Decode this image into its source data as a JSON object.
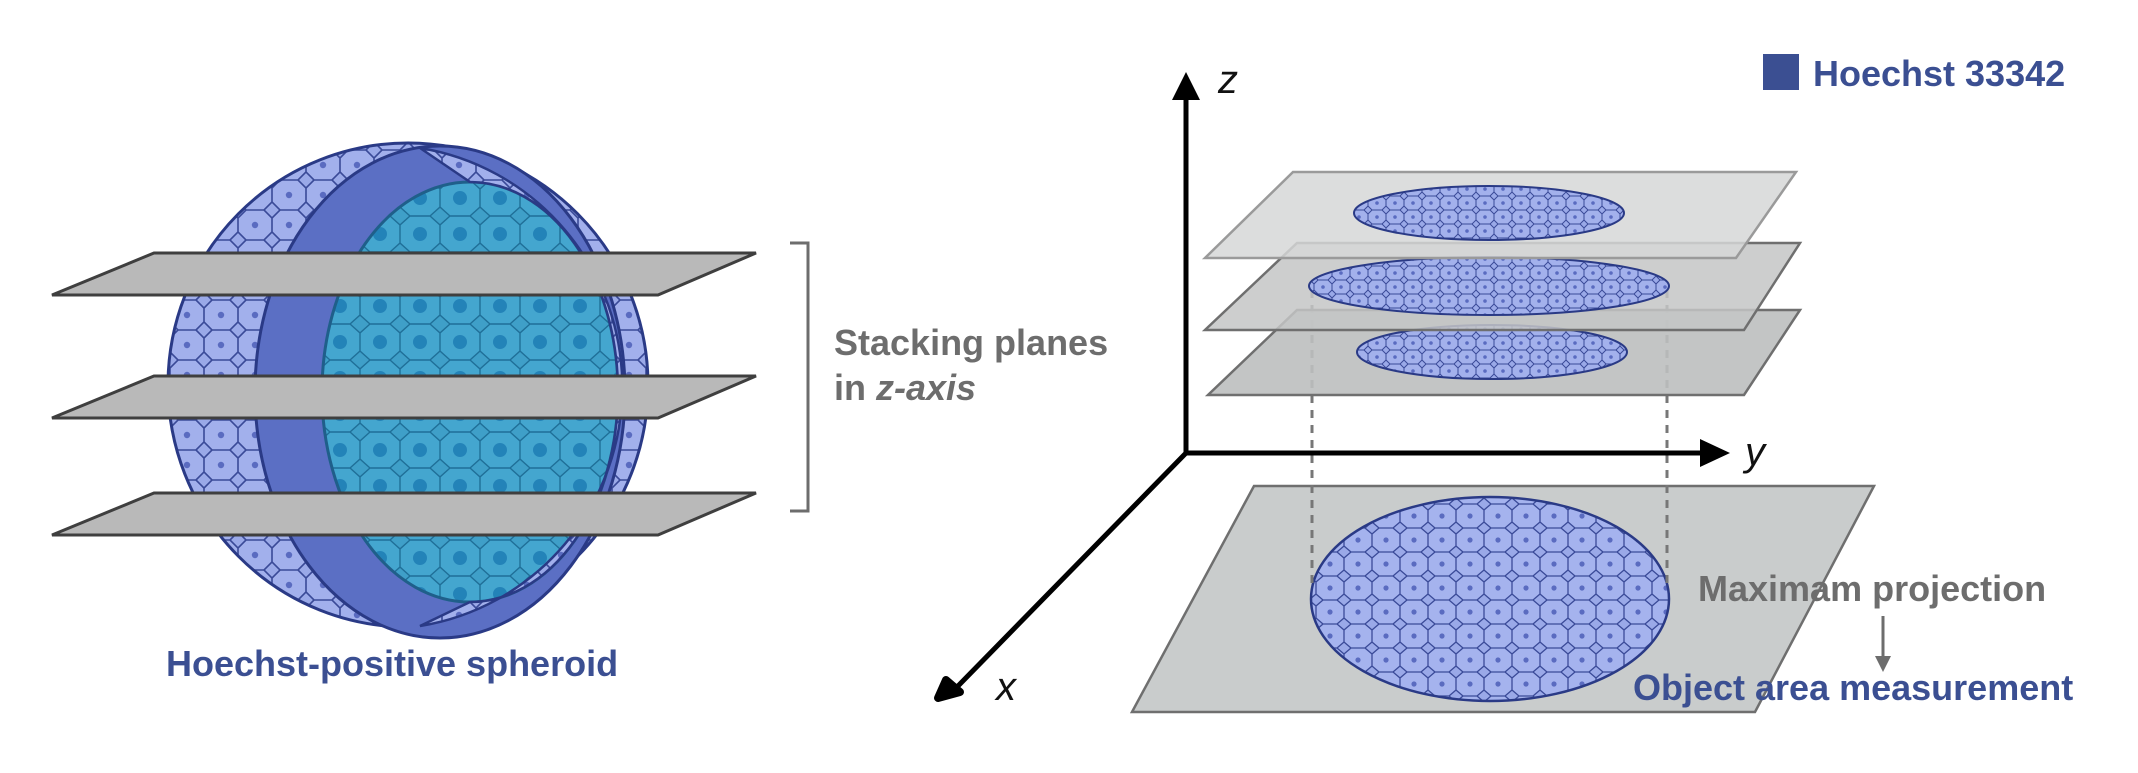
{
  "left_panel": {
    "caption": "Hoechst-positive spheroid",
    "bracket_label_line1": "Stacking planes",
    "bracket_label_prefix": "in ",
    "bracket_label_italic": "z-axis"
  },
  "right_panel": {
    "axis_z": "z",
    "axis_y": "y",
    "axis_x": "x",
    "legend_label": "Hoechst 33342",
    "step1_label": "Maximam projection",
    "step2_label": "Object area measurement"
  },
  "colors": {
    "cell_fill": "#9aa9e8",
    "cell_edge": "#2a3a86",
    "inner_fill": "#3f9fc8",
    "plane_fill": "#b9b9b9",
    "legend": "#3b4f92",
    "text_grey": "#6d6d6d"
  }
}
